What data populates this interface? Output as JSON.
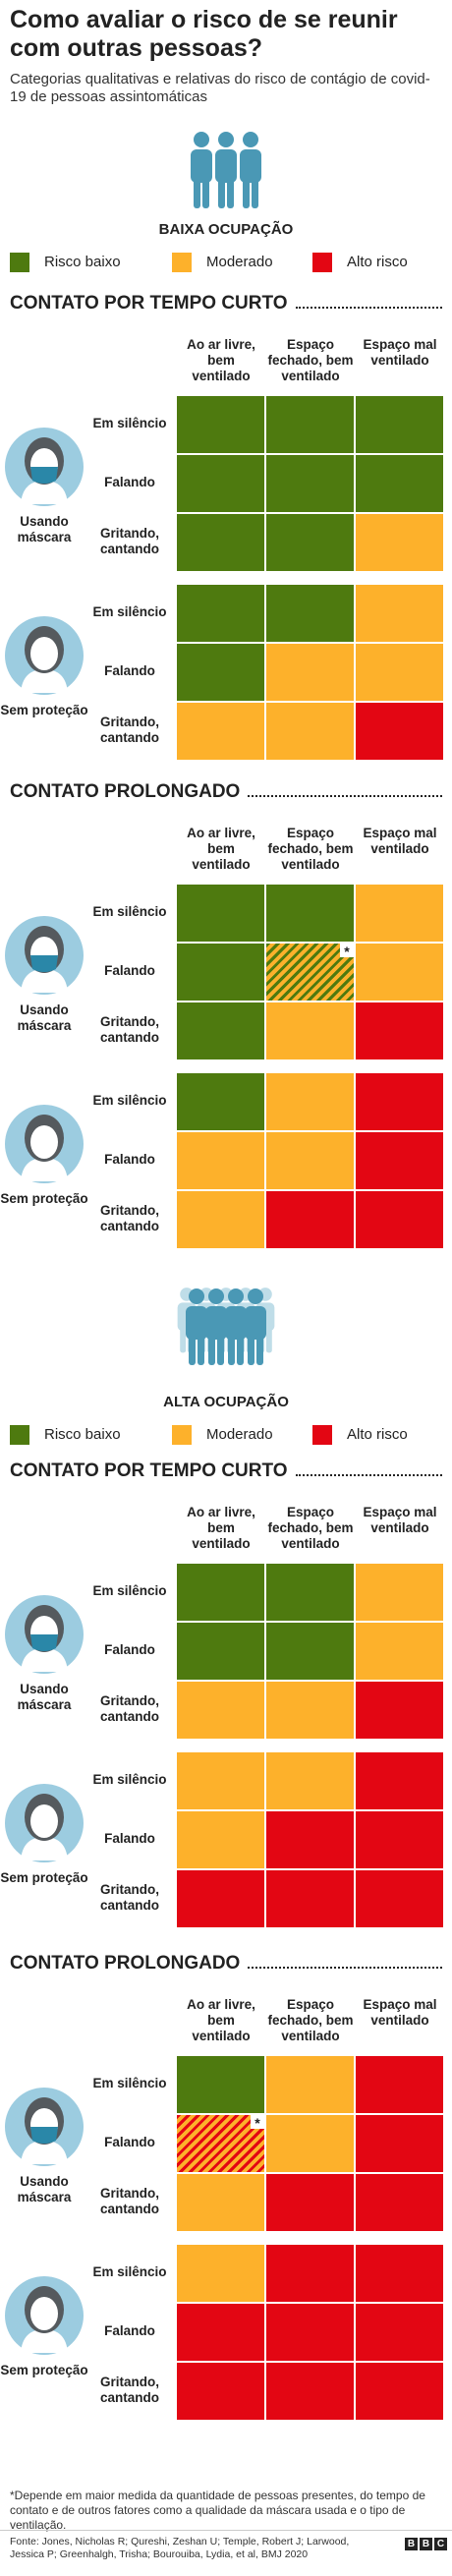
{
  "title": "Como avaliar o risco de se reunir com outras pessoas?",
  "subtitle": "Categorias qualitativas e relativas do risco de contágio de covid-19 de pessoas assintomáticas",
  "colors": {
    "low": "#4e7a0f",
    "moderate": "#fdb12b",
    "high": "#e30613"
  },
  "legend": {
    "low": "Risco baixo",
    "moderate": "Moderado",
    "high": "Alto risco"
  },
  "columns": [
    "Ao ar livre, bem ventilado",
    "Espaço fechado, bem ventilado",
    "Espaço mal ventilado"
  ],
  "rows": [
    "Em silêncio",
    "Falando",
    "Gritando, cantando"
  ],
  "groups": [
    "Usando máscara",
    "Sem proteção"
  ],
  "star": "*",
  "footnote": "*Depende em maior medida da quantidade de pessoas presentes, do tempo de contato e de outros fatores como a qualidade da máscara usada e o tipo de ventilação.",
  "source": "Fonte: Jones, Nicholas R; Qureshi, Zeshan U; Temple, Robert J; Larwood, Jessica P; Greenhalgh, Trisha; Bourouiba, Lydia, et al, BMJ 2020",
  "brand": [
    "B",
    "B",
    "C"
  ],
  "icons": {
    "crowd": "people-group-icon",
    "masked": "masked-person-icon",
    "unmasked": "person-icon"
  },
  "chart_data": [
    {
      "type": "heatmap",
      "title": "BAIXA OCUPAÇÃO",
      "panels": [
        {
          "title": "CONTATO POR TEMPO CURTO",
          "mask": [
            [
              "low",
              "low",
              "low"
            ],
            [
              "low",
              "low",
              "low"
            ],
            [
              "low",
              "low",
              "moderate"
            ]
          ],
          "nomask": [
            [
              "low",
              "low",
              "moderate"
            ],
            [
              "low",
              "moderate",
              "moderate"
            ],
            [
              "moderate",
              "moderate",
              "high"
            ]
          ]
        },
        {
          "title": "CONTATO PROLONGADO",
          "mask": [
            [
              "low",
              "low",
              "moderate"
            ],
            [
              "low",
              "low-moderate*",
              "moderate"
            ],
            [
              "low",
              "moderate",
              "high"
            ]
          ],
          "nomask": [
            [
              "low",
              "moderate",
              "high"
            ],
            [
              "moderate",
              "moderate",
              "high"
            ],
            [
              "moderate",
              "high",
              "high"
            ]
          ]
        }
      ]
    },
    {
      "type": "heatmap",
      "title": "ALTA OCUPAÇÃO",
      "panels": [
        {
          "title": "CONTATO POR TEMPO CURTO",
          "mask": [
            [
              "low",
              "low",
              "moderate"
            ],
            [
              "low",
              "low",
              "moderate"
            ],
            [
              "moderate",
              "moderate",
              "high"
            ]
          ],
          "nomask": [
            [
              "moderate",
              "moderate",
              "high"
            ],
            [
              "moderate",
              "high",
              "high"
            ],
            [
              "high",
              "high",
              "high"
            ]
          ]
        },
        {
          "title": "CONTATO PROLONGADO",
          "mask": [
            [
              "low",
              "moderate",
              "high"
            ],
            [
              "moderate-high*",
              "moderate",
              "high"
            ],
            [
              "moderate",
              "high",
              "high"
            ]
          ],
          "nomask": [
            [
              "moderate",
              "high",
              "high"
            ],
            [
              "high",
              "high",
              "high"
            ],
            [
              "high",
              "high",
              "high"
            ]
          ]
        }
      ]
    }
  ]
}
